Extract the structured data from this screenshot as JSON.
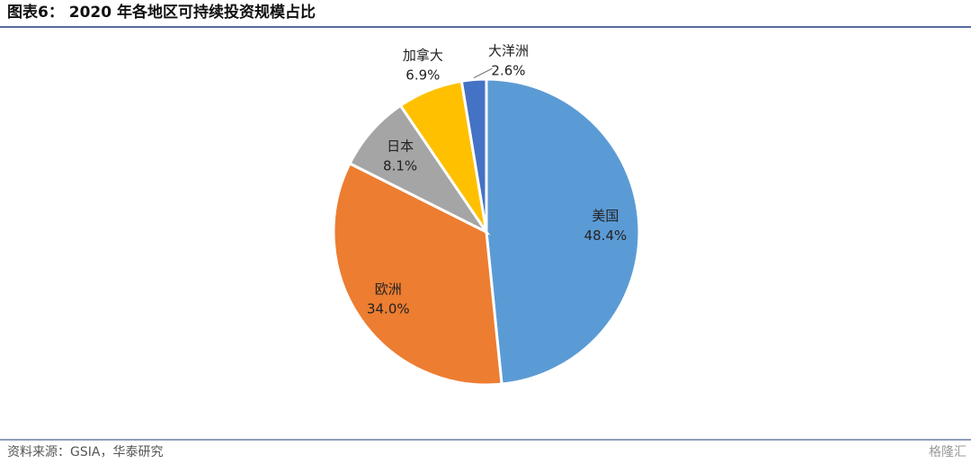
{
  "chart_data": {
    "type": "pie",
    "title": "图表6：  2020 年各地区可持续投资规模占比",
    "categories": [
      "美国",
      "欧洲",
      "日本",
      "加拿大",
      "大洋洲"
    ],
    "values": [
      48.4,
      34.0,
      8.1,
      6.9,
      2.6
    ],
    "value_labels": [
      "48.4%",
      "34.0%",
      "8.1%",
      "6.9%",
      "2.6%"
    ],
    "colors": [
      "#5b9bd5",
      "#ed7d31",
      "#a5a5a5",
      "#ffc000",
      "#4472c4"
    ],
    "source": "资料来源：GSIA，华泰研究",
    "watermark": "格隆汇"
  }
}
